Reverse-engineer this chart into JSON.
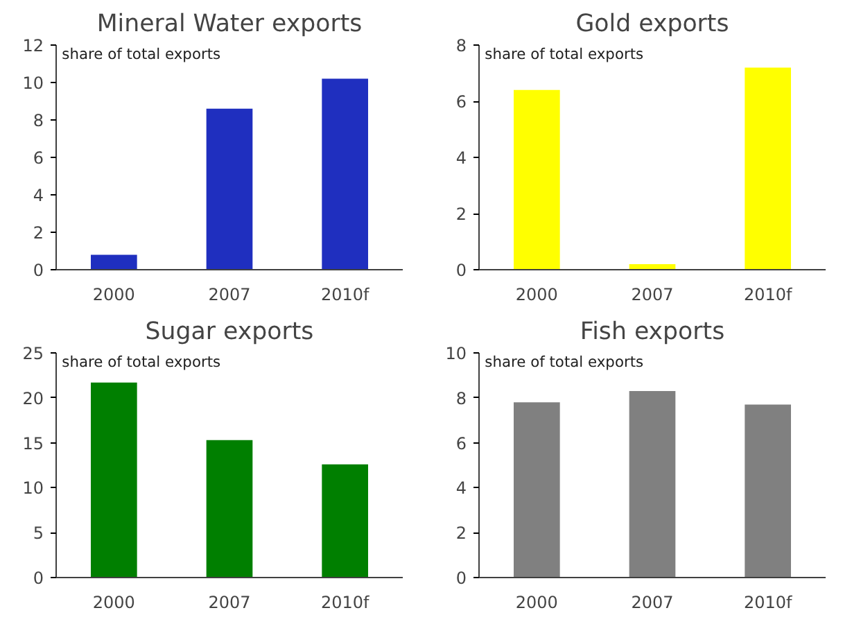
{
  "chart_data": [
    {
      "type": "bar",
      "title": "Mineral Water exports",
      "ylabel": "share of total exports",
      "categories": [
        "2000",
        "2007",
        "2010f"
      ],
      "values": [
        0.8,
        8.6,
        10.2
      ],
      "color": "#1f2fbf",
      "ylim": [
        0,
        12
      ],
      "yticks": [
        0,
        2,
        4,
        6,
        8,
        10,
        12
      ],
      "grid": false
    },
    {
      "type": "bar",
      "title": "Gold exports",
      "ylabel": "share of total exports",
      "categories": [
        "2000",
        "2007",
        "2010f"
      ],
      "values": [
        6.4,
        0.2,
        7.2
      ],
      "color": "#ffff00",
      "ylim": [
        0,
        8
      ],
      "yticks": [
        0,
        2,
        4,
        6,
        8
      ],
      "grid": false
    },
    {
      "type": "bar",
      "title": "Sugar exports",
      "ylabel": "share of total exports",
      "categories": [
        "2000",
        "2007",
        "2010f"
      ],
      "values": [
        21.7,
        15.3,
        12.6
      ],
      "color": "#007f00",
      "ylim": [
        0,
        25
      ],
      "yticks": [
        0,
        5,
        10,
        15,
        20,
        25
      ],
      "grid": false
    },
    {
      "type": "bar",
      "title": "Fish exports",
      "ylabel": "share of total exports",
      "categories": [
        "2000",
        "2007",
        "2010f"
      ],
      "values": [
        7.8,
        8.3,
        7.7
      ],
      "color": "#808080",
      "ylim": [
        0,
        10
      ],
      "yticks": [
        0,
        2,
        4,
        6,
        8,
        10
      ],
      "grid": false
    }
  ]
}
